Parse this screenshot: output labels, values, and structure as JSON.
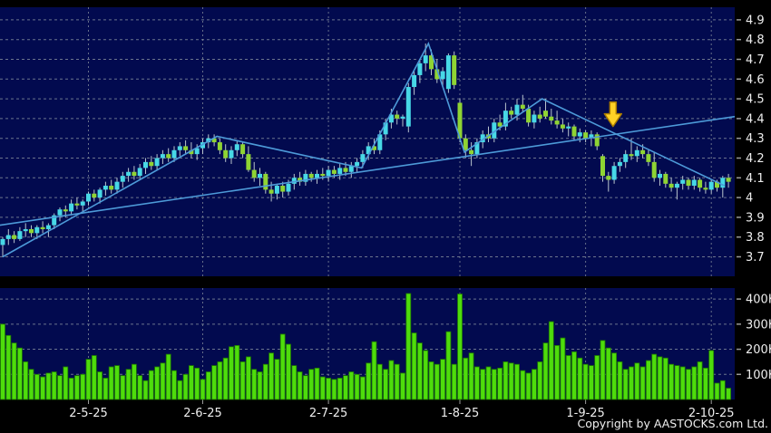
{
  "window": {
    "copyright": "Copyright by AASTOCKS.com Ltd."
  },
  "colors": {
    "background": "#000000",
    "pane_bg": "#020A4F",
    "grid": "#7E8798",
    "axis_text": "#EDEDED",
    "tick_dash": "#9A9A9A",
    "up_candle": "#47D8E6",
    "down_candle": "#8FD433",
    "wick": "#B9C4CD",
    "volume_bar": "#4EDC0C",
    "volume_bar_edge": "#1E7A00",
    "trend_line": "#4D9AD8",
    "arrow_fill": "#FFD226",
    "arrow_edge": "#A97B00"
  },
  "chart_data": {
    "type": "candlestick",
    "panes": [
      "price",
      "volume"
    ],
    "price_axis": {
      "ticks": [
        "4.9",
        "4.8",
        "4.7",
        "4.6",
        "4.5",
        "4.4",
        "4.3",
        "4.2",
        "4.1",
        "4",
        "3.9",
        "3.8",
        "3.7"
      ],
      "min": 3.65,
      "max": 4.95
    },
    "volume_axis": {
      "ticks": [
        "400K",
        "300K",
        "200K",
        "100K"
      ],
      "tick_values_k": [
        400,
        300,
        200,
        100
      ],
      "max_k": 450
    },
    "date_ticks": [
      {
        "label": "2-5-25",
        "index": 15
      },
      {
        "label": "2-6-25",
        "index": 35
      },
      {
        "label": "2-7-25",
        "index": 57
      },
      {
        "label": "1-8-25",
        "index": 80
      },
      {
        "label": "1-9-25",
        "index": 102
      },
      {
        "label": "2-10-25",
        "index": 124
      }
    ],
    "candles_ohlc": [
      [
        3.76,
        3.8,
        3.7,
        3.79
      ],
      [
        3.79,
        3.84,
        3.76,
        3.81
      ],
      [
        3.81,
        3.83,
        3.77,
        3.79
      ],
      [
        3.79,
        3.85,
        3.78,
        3.83
      ],
      [
        3.83,
        3.87,
        3.8,
        3.84
      ],
      [
        3.84,
        3.86,
        3.8,
        3.82
      ],
      [
        3.82,
        3.86,
        3.79,
        3.85
      ],
      [
        3.85,
        3.88,
        3.82,
        3.84
      ],
      [
        3.84,
        3.87,
        3.8,
        3.86
      ],
      [
        3.86,
        3.92,
        3.84,
        3.91
      ],
      [
        3.91,
        3.95,
        3.88,
        3.94
      ],
      [
        3.94,
        3.96,
        3.9,
        3.93
      ],
      [
        3.93,
        3.99,
        3.91,
        3.97
      ],
      [
        3.97,
        4.0,
        3.94,
        3.96
      ],
      [
        3.96,
        3.99,
        3.93,
        3.98
      ],
      [
        3.98,
        4.03,
        3.96,
        4.02
      ],
      [
        4.02,
        4.04,
        3.98,
        4.0
      ],
      [
        4.0,
        4.05,
        3.97,
        4.04
      ],
      [
        4.04,
        4.08,
        4.01,
        4.06
      ],
      [
        4.06,
        4.09,
        4.02,
        4.04
      ],
      [
        4.04,
        4.1,
        4.02,
        4.08
      ],
      [
        4.08,
        4.13,
        4.05,
        4.11
      ],
      [
        4.11,
        4.15,
        4.08,
        4.13
      ],
      [
        4.13,
        4.16,
        4.09,
        4.11
      ],
      [
        4.11,
        4.17,
        4.09,
        4.15
      ],
      [
        4.15,
        4.2,
        4.12,
        4.18
      ],
      [
        4.18,
        4.21,
        4.14,
        4.16
      ],
      [
        4.16,
        4.22,
        4.14,
        4.2
      ],
      [
        4.2,
        4.24,
        4.17,
        4.22
      ],
      [
        4.22,
        4.25,
        4.18,
        4.2
      ],
      [
        4.2,
        4.26,
        4.18,
        4.24
      ],
      [
        4.24,
        4.28,
        4.21,
        4.26
      ],
      [
        4.26,
        4.29,
        4.22,
        4.24
      ],
      [
        4.24,
        4.28,
        4.2,
        4.22
      ],
      [
        4.22,
        4.27,
        4.19,
        4.25
      ],
      [
        4.25,
        4.3,
        4.22,
        4.28
      ],
      [
        4.28,
        4.32,
        4.25,
        4.3
      ],
      [
        4.3,
        4.32,
        4.26,
        4.28
      ],
      [
        4.28,
        4.3,
        4.22,
        4.24
      ],
      [
        4.24,
        4.27,
        4.18,
        4.2
      ],
      [
        4.2,
        4.26,
        4.17,
        4.24
      ],
      [
        4.24,
        4.29,
        4.21,
        4.27
      ],
      [
        4.27,
        4.28,
        4.2,
        4.22
      ],
      [
        4.22,
        4.26,
        4.13,
        4.14
      ],
      [
        4.14,
        4.18,
        4.08,
        4.1
      ],
      [
        4.1,
        4.15,
        4.06,
        4.12
      ],
      [
        4.12,
        4.13,
        4.02,
        4.04
      ],
      [
        4.04,
        4.08,
        3.98,
        4.02
      ],
      [
        4.02,
        4.07,
        3.99,
        4.06
      ],
      [
        4.06,
        4.08,
        4.0,
        4.03
      ],
      [
        4.03,
        4.09,
        4.01,
        4.07
      ],
      [
        4.07,
        4.12,
        4.04,
        4.1
      ],
      [
        4.1,
        4.13,
        4.06,
        4.08
      ],
      [
        4.08,
        4.14,
        4.06,
        4.12
      ],
      [
        4.12,
        4.13,
        4.08,
        4.1
      ],
      [
        4.1,
        4.14,
        4.07,
        4.12
      ],
      [
        4.12,
        4.15,
        4.09,
        4.11
      ],
      [
        4.11,
        4.16,
        4.08,
        4.14
      ],
      [
        4.14,
        4.16,
        4.1,
        4.12
      ],
      [
        4.12,
        4.17,
        4.09,
        4.15
      ],
      [
        4.15,
        4.18,
        4.11,
        4.13
      ],
      [
        4.13,
        4.18,
        4.1,
        4.16
      ],
      [
        4.16,
        4.2,
        4.13,
        4.18
      ],
      [
        4.18,
        4.24,
        4.15,
        4.22
      ],
      [
        4.22,
        4.28,
        4.19,
        4.26
      ],
      [
        4.26,
        4.3,
        4.22,
        4.24
      ],
      [
        4.24,
        4.34,
        4.22,
        4.32
      ],
      [
        4.32,
        4.4,
        4.29,
        4.38
      ],
      [
        4.38,
        4.45,
        4.35,
        4.42
      ],
      [
        4.42,
        4.44,
        4.37,
        4.4
      ],
      [
        4.4,
        4.42,
        4.36,
        4.41
      ],
      [
        4.36,
        4.58,
        4.33,
        4.56
      ],
      [
        4.56,
        4.64,
        4.52,
        4.62
      ],
      [
        4.62,
        4.7,
        4.58,
        4.68
      ],
      [
        4.68,
        4.78,
        4.64,
        4.72
      ],
      [
        4.72,
        4.75,
        4.62,
        4.65
      ],
      [
        4.65,
        4.7,
        4.58,
        4.6
      ],
      [
        4.6,
        4.66,
        4.56,
        4.64
      ],
      [
        4.55,
        4.73,
        4.53,
        4.72
      ],
      [
        4.72,
        4.74,
        4.55,
        4.57
      ],
      [
        4.48,
        4.5,
        4.28,
        4.3
      ],
      [
        4.3,
        4.32,
        4.2,
        4.24
      ],
      [
        4.24,
        4.28,
        4.16,
        4.22
      ],
      [
        4.22,
        4.3,
        4.2,
        4.28
      ],
      [
        4.28,
        4.34,
        4.25,
        4.32
      ],
      [
        4.32,
        4.36,
        4.28,
        4.3
      ],
      [
        4.3,
        4.4,
        4.28,
        4.38
      ],
      [
        4.38,
        4.42,
        4.34,
        4.36
      ],
      [
        4.36,
        4.48,
        4.34,
        4.44
      ],
      [
        4.44,
        4.46,
        4.4,
        4.42
      ],
      [
        4.42,
        4.5,
        4.39,
        4.47
      ],
      [
        4.47,
        4.52,
        4.43,
        4.45
      ],
      [
        4.45,
        4.47,
        4.36,
        4.38
      ],
      [
        4.38,
        4.44,
        4.35,
        4.42
      ],
      [
        4.42,
        4.46,
        4.38,
        4.4
      ],
      [
        4.44,
        4.5,
        4.4,
        4.41
      ],
      [
        4.41,
        4.45,
        4.37,
        4.39
      ],
      [
        4.39,
        4.44,
        4.35,
        4.37
      ],
      [
        4.37,
        4.4,
        4.33,
        4.35
      ],
      [
        4.35,
        4.38,
        4.31,
        4.36
      ],
      [
        4.36,
        4.37,
        4.29,
        4.31
      ],
      [
        4.31,
        4.35,
        4.28,
        4.33
      ],
      [
        4.33,
        4.34,
        4.28,
        4.3
      ],
      [
        4.3,
        4.34,
        4.26,
        4.32
      ],
      [
        4.32,
        4.33,
        4.24,
        4.26
      ],
      [
        4.21,
        4.22,
        4.08,
        4.11
      ],
      [
        4.11,
        4.13,
        4.03,
        4.09
      ],
      [
        4.09,
        4.18,
        4.07,
        4.16
      ],
      [
        4.16,
        4.2,
        4.13,
        4.18
      ],
      [
        4.18,
        4.24,
        4.15,
        4.22
      ],
      [
        4.22,
        4.3,
        4.19,
        4.21
      ],
      [
        4.21,
        4.26,
        4.18,
        4.24
      ],
      [
        4.24,
        4.27,
        4.2,
        4.22
      ],
      [
        4.22,
        4.24,
        4.16,
        4.18
      ],
      [
        4.18,
        4.23,
        4.08,
        4.1
      ],
      [
        4.1,
        4.14,
        4.06,
        4.12
      ],
      [
        4.12,
        4.13,
        4.05,
        4.07
      ],
      [
        4.07,
        4.1,
        4.03,
        4.05
      ],
      [
        4.05,
        4.08,
        3.99,
        4.07
      ],
      [
        4.07,
        4.11,
        4.04,
        4.09
      ],
      [
        4.09,
        4.1,
        4.04,
        4.06
      ],
      [
        4.06,
        4.11,
        4.04,
        4.09
      ],
      [
        4.09,
        4.1,
        4.03,
        4.05
      ],
      [
        4.05,
        4.08,
        4.02,
        4.04
      ],
      [
        4.04,
        4.09,
        4.02,
        4.08
      ],
      [
        4.08,
        4.09,
        4.03,
        4.05
      ],
      [
        4.05,
        4.11,
        4.0,
        4.1
      ],
      [
        4.1,
        4.12,
        4.05,
        4.08
      ]
    ],
    "volumes_k": [
      300,
      255,
      225,
      205,
      150,
      120,
      100,
      90,
      105,
      110,
      95,
      130,
      85,
      95,
      100,
      160,
      175,
      110,
      85,
      130,
      135,
      95,
      120,
      140,
      95,
      75,
      115,
      130,
      145,
      180,
      115,
      75,
      100,
      135,
      125,
      80,
      110,
      135,
      150,
      165,
      210,
      215,
      150,
      170,
      120,
      110,
      140,
      185,
      160,
      260,
      220,
      135,
      110,
      95,
      120,
      125,
      90,
      85,
      80,
      85,
      95,
      110,
      100,
      90,
      145,
      230,
      140,
      120,
      155,
      140,
      105,
      422,
      265,
      225,
      195,
      150,
      140,
      160,
      270,
      140,
      420,
      165,
      185,
      130,
      120,
      130,
      120,
      125,
      150,
      145,
      140,
      115,
      105,
      120,
      150,
      225,
      310,
      215,
      245,
      175,
      190,
      165,
      140,
      135,
      175,
      235,
      205,
      185,
      150,
      120,
      130,
      145,
      130,
      155,
      180,
      170,
      165,
      140,
      135,
      130,
      120,
      130,
      150,
      125,
      195,
      65,
      75,
      45
    ],
    "overlays": {
      "support_line": {
        "from": {
          "index": -0.48,
          "price": 3.86
        },
        "to": {
          "index": 128.1,
          "price": 4.41
        }
      },
      "zigzag": [
        [
          0,
          3.7
        ],
        [
          37.5,
          4.31
        ],
        [
          62.8,
          4.15
        ],
        [
          74.5,
          4.78
        ],
        [
          80.8,
          4.23
        ],
        [
          94.4,
          4.5
        ],
        [
          126.3,
          4.06
        ]
      ],
      "arrow": {
        "index": 106.8,
        "tip_price": 4.36
      }
    }
  }
}
